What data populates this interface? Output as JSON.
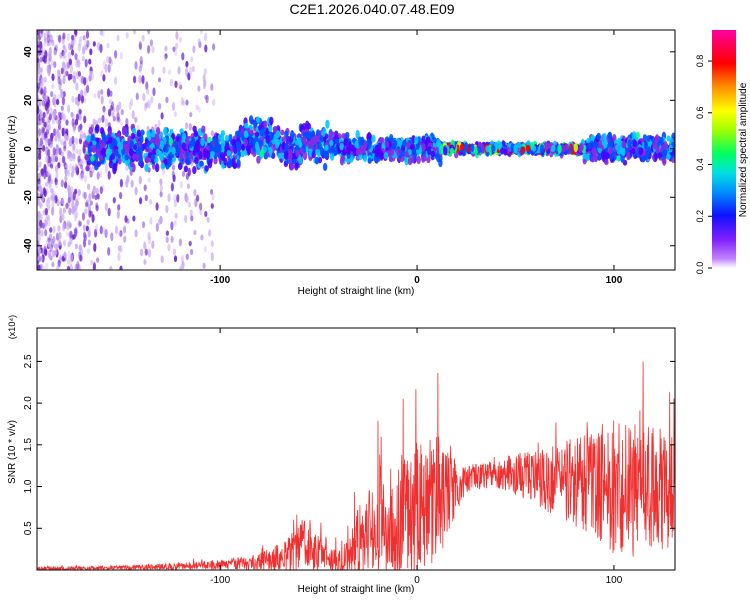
{
  "title": "C2E1.2026.040.07.48.E09",
  "chart_data": [
    {
      "type": "heatmap",
      "title": "C2E1.2026.040.07.48.E09",
      "xlabel": "Height of straight line (km)",
      "ylabel": "Frequency (Hz)",
      "xlim": [
        -193,
        131
      ],
      "ylim": [
        -50,
        49
      ],
      "x_ticks": [
        -100,
        0,
        100
      ],
      "y_ticks": [
        -40,
        -20,
        0,
        20,
        40
      ],
      "band_center_hz": 0,
      "band_halfwidth_hz": 5,
      "colorbar": {
        "label": "Normalized spectral amplitude",
        "range": [
          0.0,
          0.92
        ],
        "ticks": [
          "0.0",
          "0.2",
          "0.4",
          "0.6",
          "0.8"
        ]
      },
      "colors": [
        "#8a2be2",
        "#4b00ff",
        "#0050ff",
        "#00c8ff",
        "#00ff80",
        "#d2ff00",
        "#ff9600",
        "#ff0000",
        "#ff00ff"
      ]
    },
    {
      "type": "line",
      "xlabel": "Height of straight line (km)",
      "ylabel": "SNR (10 * v/v)",
      "scale_label": "(x10⁴)",
      "xlim": [
        -193,
        131
      ],
      "ylim": [
        0,
        2.9
      ],
      "x_ticks": [
        -100,
        0,
        100
      ],
      "y_ticks": [
        "0.5",
        "1.0",
        "1.5",
        "2.0",
        "2.5"
      ],
      "color": "#f03030",
      "series": [
        {
          "name": "SNR",
          "x": [
            -193,
            -170,
            -150,
            -130,
            -110,
            -95,
            -80,
            -70,
            -62,
            -58,
            -52,
            -46,
            -40,
            -35,
            -30,
            -25,
            -20,
            -15,
            -10,
            -5,
            0,
            5,
            10,
            15,
            20,
            25,
            30,
            40,
            50,
            60,
            70,
            80,
            85,
            90,
            95,
            100,
            105,
            110,
            115,
            120,
            125,
            131
          ],
          "base": [
            0.02,
            0.02,
            0.03,
            0.04,
            0.05,
            0.07,
            0.1,
            0.15,
            0.22,
            0.3,
            0.25,
            0.12,
            0.1,
            0.12,
            0.35,
            0.45,
            0.5,
            0.55,
            0.6,
            0.7,
            0.75,
            0.8,
            0.85,
            0.95,
            1.0,
            1.1,
            1.12,
            1.15,
            1.15,
            1.1,
            1.1,
            1.05,
            1.05,
            1.05,
            1.0,
            1.0,
            1.0,
            0.95,
            1.0,
            1.0,
            0.95,
            0.95
          ],
          "amp": [
            0.03,
            0.03,
            0.03,
            0.04,
            0.06,
            0.08,
            0.12,
            0.2,
            0.3,
            0.4,
            0.3,
            0.15,
            0.2,
            0.3,
            0.55,
            0.6,
            0.7,
            0.8,
            0.85,
            0.9,
            0.95,
            1.0,
            0.9,
            0.7,
            0.35,
            0.2,
            0.18,
            0.2,
            0.3,
            0.4,
            0.55,
            0.65,
            0.7,
            0.8,
            0.9,
            1.0,
            1.0,
            0.95,
            0.9,
            0.9,
            0.85,
            0.8
          ]
        }
      ]
    }
  ]
}
